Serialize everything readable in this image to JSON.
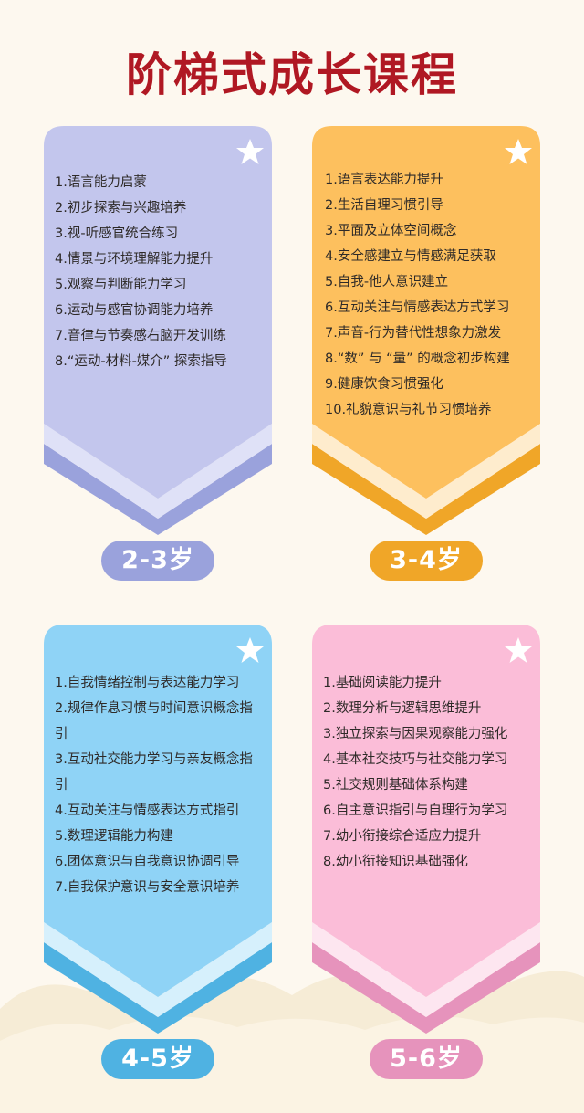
{
  "title": "阶梯式成长课程",
  "cards": [
    {
      "age": "2-3岁",
      "items": [
        "1.语言能力启蒙",
        "2.初步探索与兴趣培养",
        "3.视-听感官统合练习",
        "4.情景与环境理解能力提升",
        "5.观察与判断能力学习",
        "6.运动与感官协调能力培养",
        "7.音律与节奏感右脑开发训练",
        "8.“运动-材料-媒介” 探索指导"
      ],
      "colors": {
        "fill": "#c3c6ed",
        "band": "#dfe1f7",
        "edge": "#9aa2dc",
        "pill": "#9aa2dc"
      }
    },
    {
      "age": "3-4岁",
      "items": [
        "1.语言表达能力提升",
        "2.生活自理习惯引导",
        "3.平面及立体空间概念",
        "4.安全感建立与情感满足获取",
        "5.自我-他人意识建立",
        "6.互动关注与情感表达方式学习",
        "7.声音-行为替代性想象力激发",
        "8.“数” 与 “量” 的概念初步构建",
        "9.健康饮食习惯强化",
        "10.礼貌意识与礼节习惯培养"
      ],
      "colors": {
        "fill": "#fdc05e",
        "band": "#feeccd",
        "edge": "#f0a628",
        "pill": "#f0a628"
      }
    },
    {
      "age": "4-5岁",
      "items": [
        "1.自我情绪控制与表达能力学习",
        "2.规律作息习惯与时间意识概念指引",
        "3.互动社交能力学习与亲友概念指引",
        "4.互动关注与情感表达方式指引",
        "5.数理逻辑能力构建",
        "6.团体意识与自我意识协调引导",
        "7.自我保护意识与安全意识培养"
      ],
      "colors": {
        "fill": "#8fd3f6",
        "band": "#d6f0fc",
        "edge": "#4fb2e2",
        "pill": "#4fb2e2"
      }
    },
    {
      "age": "5-6岁",
      "items": [
        "1.基础阅读能力提升",
        "2.数理分析与逻辑思维提升",
        "3.独立探索与因果观察能力强化",
        "4.基本社交技巧与社交能力学习",
        "5.社交规则基础体系构建",
        "6.自主意识指引与自理行为学习",
        "7.幼小衔接综合适应力提升",
        "8.幼小衔接知识基础强化"
      ],
      "colors": {
        "fill": "#fbbdd8",
        "band": "#fde6f0",
        "edge": "#e693bc",
        "pill": "#e693bc"
      }
    }
  ]
}
